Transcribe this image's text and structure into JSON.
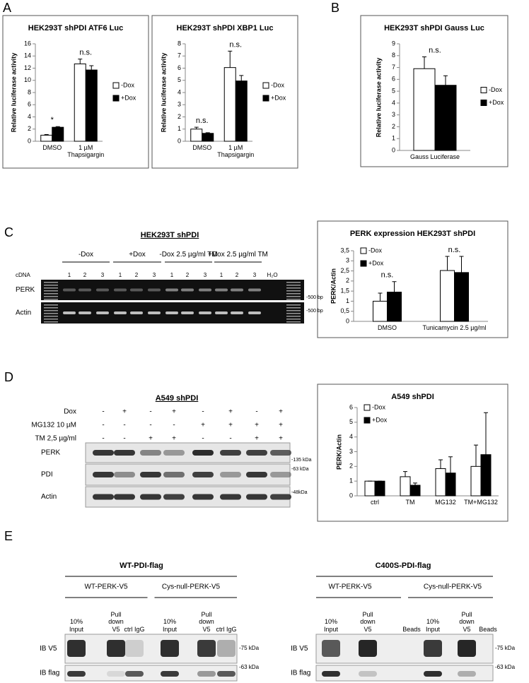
{
  "panels": [
    "A",
    "B",
    "C",
    "D",
    "E"
  ],
  "chart_data": [
    {
      "type": "bar",
      "title": "HEK293T shPDI ATF6 Luc",
      "y_label": "Relative luciferase activity",
      "categories": [
        "DMSO",
        "1 µM Thapsigargin"
      ],
      "series": [
        {
          "name": "-Dox",
          "color": "#ffffff",
          "values": [
            1.0,
            12.7
          ],
          "errors": [
            0.1,
            0.8
          ]
        },
        {
          "name": "+Dox",
          "color": "#000000",
          "values": [
            2.3,
            11.7
          ],
          "errors": [
            0.1,
            0.7
          ]
        }
      ],
      "annotations": [
        "*",
        "n.s."
      ],
      "ylim": [
        0,
        16
      ],
      "yticks": [
        0,
        2,
        4,
        6,
        8,
        10,
        12,
        14,
        16
      ],
      "legend": "right"
    },
    {
      "type": "bar",
      "title": "HEK293T shPDI XBP1 Luc",
      "y_label": "Relative luciferase activity",
      "categories": [
        "DMSO",
        "1 µM Thapsigargin"
      ],
      "series": [
        {
          "name": "-Dox",
          "color": "#ffffff",
          "values": [
            1.0,
            6.05
          ],
          "errors": [
            0.15,
            1.35
          ]
        },
        {
          "name": "+Dox",
          "color": "#000000",
          "values": [
            0.65,
            4.95
          ],
          "errors": [
            0.05,
            0.45
          ]
        }
      ],
      "annotations": [
        "n.s.",
        "n.s."
      ],
      "ylim": [
        0,
        8
      ],
      "yticks": [
        0,
        1,
        2,
        3,
        4,
        5,
        6,
        7,
        8
      ],
      "legend": "right"
    },
    {
      "type": "bar",
      "title": "HEK293T shPDI Gauss Luc",
      "y_label": "Relative luciferase activity",
      "categories": [
        "Gauss Luciferase"
      ],
      "series": [
        {
          "name": "-Dox",
          "color": "#ffffff",
          "values": [
            6.9
          ],
          "errors": [
            1.0
          ]
        },
        {
          "name": "+Dox",
          "color": "#000000",
          "values": [
            5.5
          ],
          "errors": [
            0.8
          ]
        }
      ],
      "annotations": [
        "n.s."
      ],
      "ylim": [
        0,
        9
      ],
      "yticks": [
        0,
        1,
        2,
        3,
        4,
        5,
        6,
        7,
        8,
        9
      ],
      "legend": "right"
    },
    {
      "type": "bar",
      "title": "PERK expression HEK293T shPDI",
      "y_label": "PERK/Actin",
      "categories": [
        "DMSO",
        "Tunicamycin 2.5 µg/ml"
      ],
      "series": [
        {
          "name": "-Dox",
          "color": "#ffffff",
          "values": [
            1.0,
            2.52
          ],
          "errors": [
            0.4,
            0.7
          ]
        },
        {
          "name": "+Dox",
          "color": "#000000",
          "values": [
            1.45,
            2.42
          ],
          "errors": [
            0.52,
            0.8
          ]
        }
      ],
      "annotations": [
        "n.s.",
        "n.s."
      ],
      "ylim": [
        0,
        3.5
      ],
      "yticks": [
        0,
        {
          "value": 0.5,
          "label": "0,5"
        },
        1,
        {
          "value": 1.5,
          "label": "1,5"
        },
        2,
        {
          "value": 2.5,
          "label": "2,5"
        },
        3,
        {
          "value": 3.5,
          "label": "3,5"
        }
      ],
      "legend": "upper left"
    },
    {
      "type": "bar",
      "title": "A549 shPDI",
      "y_label": "PERK/Actin",
      "categories": [
        "ctrl",
        "TM",
        "MG132",
        "TM+MG132"
      ],
      "series": [
        {
          "name": "-Dox",
          "color": "#ffffff",
          "values": [
            1.0,
            1.3,
            1.85,
            2.0
          ],
          "errors": [
            0.0,
            0.35,
            0.6,
            1.45
          ]
        },
        {
          "name": "+Dox",
          "color": "#000000",
          "values": [
            1.0,
            0.72,
            1.55,
            2.8
          ],
          "errors": [
            0.0,
            0.15,
            1.1,
            2.85
          ]
        }
      ],
      "ylim": [
        0,
        6
      ],
      "yticks": [
        0,
        1,
        2,
        3,
        4,
        5,
        6
      ],
      "legend": "upper left"
    }
  ],
  "gel_c": {
    "title": "HEK293T shPDI",
    "groups": [
      "-Dox",
      "+Dox",
      "-Dox 2.5 µg/ml TM",
      "+Dox 2.5 µg/ml TM"
    ],
    "cdna": "cDNA",
    "lanes": [
      "1",
      "2",
      "3",
      "1",
      "2",
      "3",
      "1",
      "2",
      "3",
      "1",
      "2",
      "3"
    ],
    "h2o": "H₂O",
    "rows": [
      "PERK",
      "Actin"
    ],
    "markers": [
      "-500 bp",
      "-500 bp"
    ]
  },
  "gel_d": {
    "title": "A549 shPDI",
    "conditions": [
      {
        "name": "Dox",
        "signs": [
          "-",
          "+",
          "-",
          "+",
          "-",
          "+",
          "-",
          "+"
        ]
      },
      {
        "name": "MG132 10 µM",
        "signs": [
          "-",
          "-",
          "-",
          "-",
          "+",
          "+",
          "+",
          "+"
        ]
      },
      {
        "name": "TM 2,5 µg/ml",
        "signs": [
          "-",
          "-",
          "+",
          "+",
          "-",
          "-",
          "+",
          "+"
        ]
      }
    ],
    "rows": [
      "PERK",
      "PDI",
      "Actin"
    ],
    "markers": [
      "-135 kDa",
      "-63 kDa",
      "-48kDa"
    ]
  },
  "gel_e": [
    {
      "title": "WT-PDI-flag",
      "constructs": [
        "WT-PERK-V5",
        "Cys-null-PERK-V5"
      ],
      "lanes": [
        "10% Input",
        "Pull down V5",
        "ctrl IgG",
        "10% Input",
        "Pull down V5",
        "ctrl IgG"
      ],
      "rows": [
        "IB V5",
        "IB flag"
      ],
      "markers": [
        "-75 kDa",
        "-63 kDa"
      ]
    },
    {
      "title": "C400S-PDI-flag",
      "constructs": [
        "WT-PERK-V5",
        "Cys-null-PERK-V5"
      ],
      "lanes": [
        "10% Input",
        "Pull down V5",
        "Beads",
        "10% Input",
        "Pull down V5",
        "Beads"
      ],
      "rows": [
        "IB V5",
        "IB flag"
      ],
      "markers": [
        "-75 kDa",
        "-63 kDa"
      ]
    }
  ]
}
